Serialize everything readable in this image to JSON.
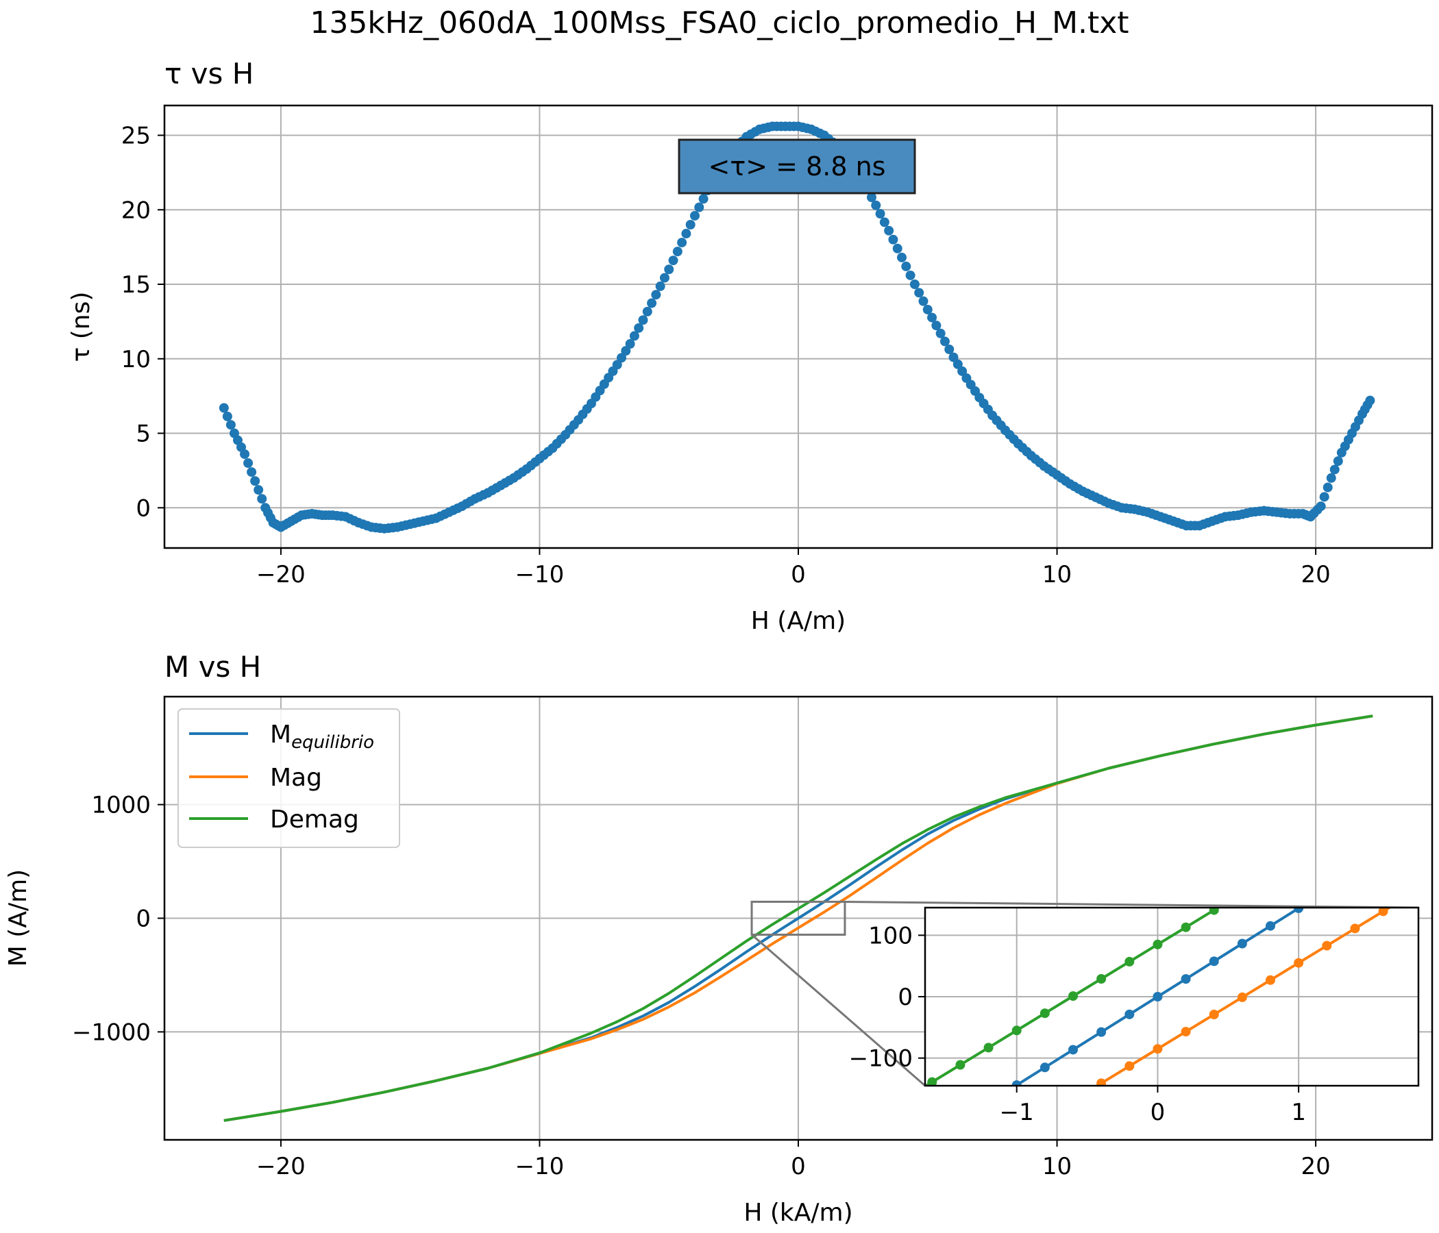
{
  "suptitle": "135kHz_060dA_100Mss_FSA0_ciclo_promedio_H_M.txt",
  "colors": {
    "tau": "#1f77b4",
    "m_equilibrio": "#1f77b4",
    "mag": "#ff7f0e",
    "demag": "#2ca02c",
    "grid": "#b0b0b0",
    "annotation_box": "#4a8bbf"
  },
  "chart_data": [
    {
      "type": "scatter",
      "title": "τ vs H",
      "xlabel": "H (A/m)",
      "ylabel": "τ (ns)",
      "xlim": [
        -24.5,
        24.5
      ],
      "ylim": [
        -2.7,
        27
      ],
      "xticks": [
        -20,
        -10,
        0,
        10,
        20
      ],
      "xtick_labels": [
        "−20",
        "−10",
        "0",
        "10",
        "20"
      ],
      "yticks": [
        0,
        5,
        10,
        15,
        20,
        25
      ],
      "ytick_labels": [
        "0",
        "5",
        "10",
        "15",
        "20",
        "25"
      ],
      "grid": true,
      "annotation": "<τ> = 8.8 ns",
      "series": [
        {
          "x": [
            -22.2,
            -21.8,
            -21.4,
            -21.0,
            -20.6,
            -20.3,
            -20.0,
            -19.6,
            -19.2,
            -18.8,
            -18.4,
            -18.0,
            -17.5,
            -17.0,
            -16.5,
            -16.0,
            -15.5,
            -15.0,
            -14.5,
            -14.0,
            -13.5,
            -13.0,
            -12.5,
            -12.0,
            -11.5,
            -11.0,
            -10.5,
            -10.0,
            -9.5,
            -9.0,
            -8.5,
            -8.0,
            -7.5,
            -7.0,
            -6.5,
            -6.0,
            -5.5,
            -5.0,
            -4.5,
            -4.0,
            -3.5,
            -3.0,
            -2.5,
            -2.0,
            -1.5,
            -1.0,
            -0.5,
            0.0,
            0.5,
            1.0,
            1.5,
            2.0,
            2.5,
            3.0,
            3.5,
            4.0,
            4.5,
            5.0,
            5.5,
            6.0,
            6.5,
            7.0,
            7.5,
            8.0,
            8.5,
            9.0,
            9.5,
            10.0,
            10.5,
            11.0,
            11.5,
            12.0,
            12.5,
            13.0,
            13.5,
            14.0,
            14.5,
            15.0,
            15.5,
            16.0,
            16.5,
            17.0,
            17.5,
            18.0,
            18.5,
            19.0,
            19.5,
            19.8,
            20.2,
            20.6,
            21.0,
            21.4,
            21.8,
            22.1
          ],
          "y": [
            6.7,
            5.0,
            3.6,
            1.8,
            0.0,
            -1.0,
            -1.3,
            -0.9,
            -0.5,
            -0.4,
            -0.5,
            -0.5,
            -0.6,
            -1.0,
            -1.3,
            -1.4,
            -1.3,
            -1.1,
            -0.9,
            -0.7,
            -0.3,
            0.1,
            0.6,
            1.0,
            1.5,
            2.0,
            2.6,
            3.3,
            4.0,
            4.9,
            5.9,
            7.0,
            8.3,
            9.6,
            11.0,
            12.6,
            14.3,
            16.0,
            17.8,
            19.6,
            21.3,
            22.8,
            24.0,
            24.9,
            25.4,
            25.6,
            25.6,
            25.6,
            25.4,
            25.0,
            24.3,
            23.3,
            21.9,
            20.3,
            18.6,
            16.8,
            15.0,
            13.3,
            11.7,
            10.1,
            8.7,
            7.4,
            6.2,
            5.2,
            4.3,
            3.5,
            2.8,
            2.2,
            1.6,
            1.1,
            0.7,
            0.3,
            0.0,
            -0.1,
            -0.3,
            -0.6,
            -0.9,
            -1.2,
            -1.2,
            -0.9,
            -0.6,
            -0.5,
            -0.3,
            -0.2,
            -0.3,
            -0.4,
            -0.4,
            -0.6,
            0.1,
            2.0,
            3.7,
            5.0,
            6.3,
            7.2
          ]
        }
      ]
    },
    {
      "type": "line",
      "title": "M vs H",
      "xlabel": "H (kA/m)",
      "ylabel": "M (A/m)",
      "xlim": [
        -24.5,
        24.5
      ],
      "ylim": [
        -1950,
        1950
      ],
      "xticks": [
        -20,
        -10,
        0,
        10,
        20
      ],
      "xtick_labels": [
        "−20",
        "−10",
        "0",
        "10",
        "20"
      ],
      "yticks": [
        -1000,
        0,
        1000
      ],
      "ytick_labels": [
        "−1000",
        "0",
        "1000"
      ],
      "grid": true,
      "legend_position": "top-left",
      "series": [
        {
          "name": "M",
          "name_subscript": "equilibrio",
          "x": [
            -22.2,
            -20,
            -18,
            -16,
            -14,
            -12,
            -10,
            -8,
            -7,
            -6,
            -5,
            -4,
            -3,
            -2,
            -1,
            -0.5,
            0,
            0.5,
            1,
            2,
            3,
            4,
            5,
            6,
            7,
            8,
            10,
            12,
            14,
            16,
            18,
            20,
            22.2
          ],
          "y": [
            -1780,
            -1700,
            -1620,
            -1530,
            -1430,
            -1320,
            -1190,
            -1050,
            -960,
            -860,
            -740,
            -600,
            -450,
            -295,
            -145,
            -72,
            0,
            72,
            145,
            295,
            450,
            600,
            740,
            860,
            960,
            1050,
            1190,
            1320,
            1430,
            1530,
            1620,
            1700,
            1780
          ]
        },
        {
          "name": "Mag",
          "x": [
            -22.2,
            -20,
            -18,
            -16,
            -14,
            -12,
            -10,
            -8,
            -7,
            -6,
            -5,
            -4,
            -3,
            -2,
            -1,
            -0.5,
            0,
            0.5,
            1,
            2,
            3,
            4,
            5,
            6,
            7,
            8,
            10,
            12,
            14,
            16,
            18,
            20,
            22.2
          ],
          "y": [
            -1780,
            -1700,
            -1620,
            -1530,
            -1430,
            -1320,
            -1190,
            -1060,
            -980,
            -890,
            -780,
            -655,
            -515,
            -370,
            -225,
            -155,
            -85,
            -15,
            55,
            200,
            355,
            510,
            660,
            795,
            910,
            1010,
            1185,
            1320,
            1430,
            1530,
            1620,
            1700,
            1780
          ]
        },
        {
          "name": "Demag",
          "x": [
            -22.2,
            -20,
            -18,
            -16,
            -14,
            -12,
            -10,
            -8,
            -7,
            -6,
            -5,
            -4,
            -3,
            -2,
            -1,
            -0.5,
            0,
            0.5,
            1,
            2,
            3,
            4,
            5,
            6,
            7,
            8,
            10,
            12,
            14,
            16,
            18,
            20,
            22.2
          ],
          "y": [
            -1780,
            -1700,
            -1620,
            -1530,
            -1430,
            -1320,
            -1185,
            -1010,
            -910,
            -795,
            -660,
            -510,
            -355,
            -200,
            -55,
            15,
            85,
            155,
            225,
            370,
            515,
            655,
            780,
            890,
            980,
            1060,
            1190,
            1320,
            1430,
            1530,
            1620,
            1700,
            1780
          ]
        }
      ],
      "inset": {
        "xlim": [
          -1.65,
          1.85
        ],
        "ylim": [
          -145,
          145
        ],
        "xticks": [
          -1,
          0,
          1
        ],
        "xtick_labels": [
          "−1",
          "0",
          "1"
        ],
        "yticks": [
          -100,
          0,
          100
        ],
        "ytick_labels": [
          "−100",
          "0",
          "100"
        ],
        "markers_step": 0.2,
        "zoom_region_x": [
          -1.8,
          1.8
        ],
        "zoom_region_y": [
          -145,
          145
        ]
      }
    }
  ]
}
